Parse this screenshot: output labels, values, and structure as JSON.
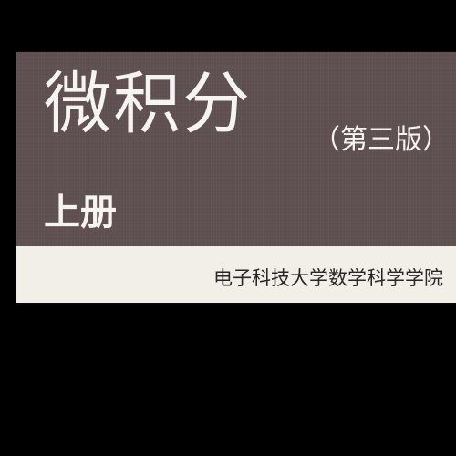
{
  "cover": {
    "title": "微积分",
    "edition": "（第三版）",
    "volume": "上册",
    "publisher": "电子科技大学数学科学学院"
  },
  "colors": {
    "background": "#000000",
    "band": "#5f5151",
    "lower_panel": "#f1efe8",
    "title_text": "#f6f4f2",
    "publisher_text": "#2b2626"
  }
}
